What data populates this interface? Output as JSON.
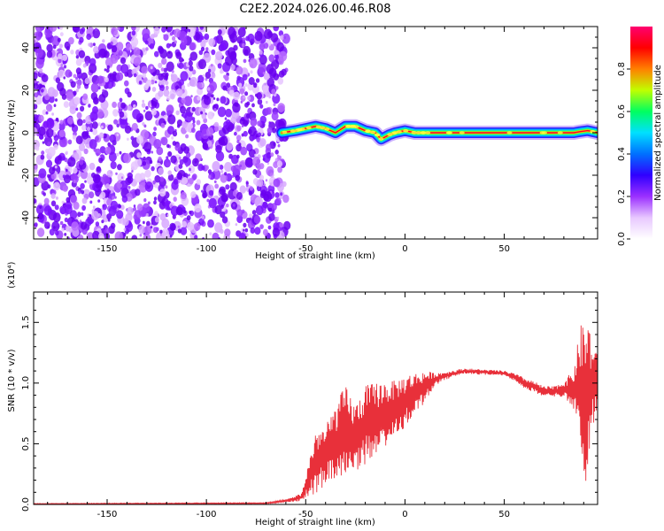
{
  "title": "C2E2.2024.026.00.46.R08",
  "colors": {
    "spectrum_scale": [
      "#ffffff",
      "#e8c8ff",
      "#9b30ff",
      "#3000ff",
      "#0070ff",
      "#00e0ff",
      "#00ff60",
      "#c0ff00",
      "#ff8000",
      "#ff0000",
      "#ff0070"
    ],
    "snr_line": "#e8303a"
  },
  "chart_data": [
    {
      "type": "heatmap",
      "xlabel": "Height of straight line (km)",
      "ylabel": "Frequency (Hz)",
      "xlim": [
        -187,
        97
      ],
      "ylim": [
        -50,
        50
      ],
      "xticks": [
        -150,
        -100,
        -50,
        0,
        50
      ],
      "yticks": [
        -40,
        -20,
        0,
        20,
        40
      ],
      "colorbar": {
        "label": "Normalized spectral amplitude",
        "range": [
          0,
          1
        ],
        "ticks": [
          "0.0",
          "0.2",
          "0.4",
          "0.6",
          "0.8"
        ],
        "tick_values": [
          0,
          0.2,
          0.4,
          0.6,
          0.8
        ]
      },
      "noise_region": {
        "x_from": -187,
        "x_to": -62,
        "amplitude": 0.05
      },
      "signal_ridge": {
        "x": [
          -62,
          -55,
          -50,
          -45,
          -40,
          -35,
          -30,
          -25,
          -20,
          -15,
          -12,
          -8,
          -5,
          0,
          5,
          10,
          20,
          30,
          50,
          70,
          85,
          88,
          92,
          97
        ],
        "frequency": [
          0,
          1,
          2,
          3,
          2,
          0,
          3,
          3,
          1,
          0,
          -3,
          -1,
          0,
          1,
          0,
          0,
          0,
          0,
          0,
          0,
          0,
          0.5,
          1,
          0
        ],
        "amplitude": 1.0
      }
    },
    {
      "type": "line",
      "xlabel": "Height of straight line (km)",
      "ylabel": "SNR (10 * v/v)",
      "yunit_multiplier": "(x10⁴)",
      "xlim": [
        -187,
        97
      ],
      "ylim": [
        0,
        1.75
      ],
      "xticks": [
        -150,
        -100,
        -50,
        0,
        50
      ],
      "yticks": [
        0.0,
        0.5,
        1.0,
        1.5
      ],
      "ytick_labels": [
        "0.0",
        "0.5",
        "1.0",
        "1.5"
      ],
      "series": [
        {
          "envelope_x": [
            -187,
            -70,
            -60,
            -52,
            -50,
            -45,
            -40,
            -35,
            -30,
            -25,
            -20,
            -15,
            -10,
            -5,
            0,
            5,
            10,
            15,
            20,
            30,
            40,
            50,
            55,
            60,
            65,
            70,
            75,
            80,
            85,
            88,
            90,
            92,
            95,
            97
          ],
          "envelope_y": [
            0.005,
            0.01,
            0.03,
            0.06,
            0.15,
            0.35,
            0.4,
            0.5,
            0.6,
            0.55,
            0.65,
            0.7,
            0.75,
            0.8,
            0.85,
            0.92,
            0.97,
            1.03,
            1.06,
            1.1,
            1.09,
            1.08,
            1.05,
            1.0,
            0.97,
            0.93,
            0.93,
            0.95,
            0.95,
            1.0,
            0.8,
            0.9,
            1.0,
            1.0
          ],
          "spread": [
            0.003,
            0.004,
            0.01,
            0.03,
            0.08,
            0.25,
            0.22,
            0.3,
            0.35,
            0.25,
            0.3,
            0.28,
            0.25,
            0.2,
            0.2,
            0.15,
            0.12,
            0.05,
            0.03,
            0.02,
            0.02,
            0.02,
            0.03,
            0.04,
            0.04,
            0.04,
            0.04,
            0.06,
            0.15,
            0.4,
            0.7,
            0.6,
            0.3,
            0.2
          ]
        }
      ]
    }
  ]
}
